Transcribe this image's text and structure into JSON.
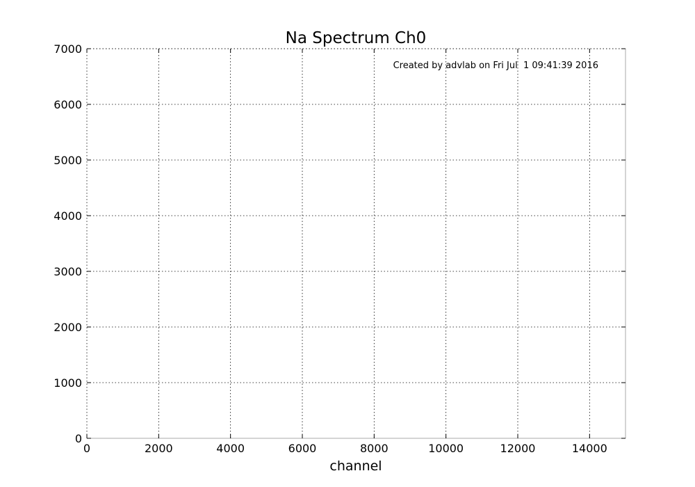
{
  "chart_data": {
    "type": "line",
    "title": "Na Spectrum Ch0",
    "xlabel": "channel",
    "ylabel": "",
    "annotation": "Created by advlab on Fri Jul  1 09:41:39 2016",
    "xlim": [
      0,
      15000
    ],
    "ylim": [
      0,
      7000
    ],
    "xticks": [
      0,
      2000,
      4000,
      6000,
      8000,
      10000,
      12000,
      14000
    ],
    "yticks": [
      0,
      1000,
      2000,
      3000,
      4000,
      5000,
      6000,
      7000
    ],
    "grid": true,
    "series": []
  }
}
